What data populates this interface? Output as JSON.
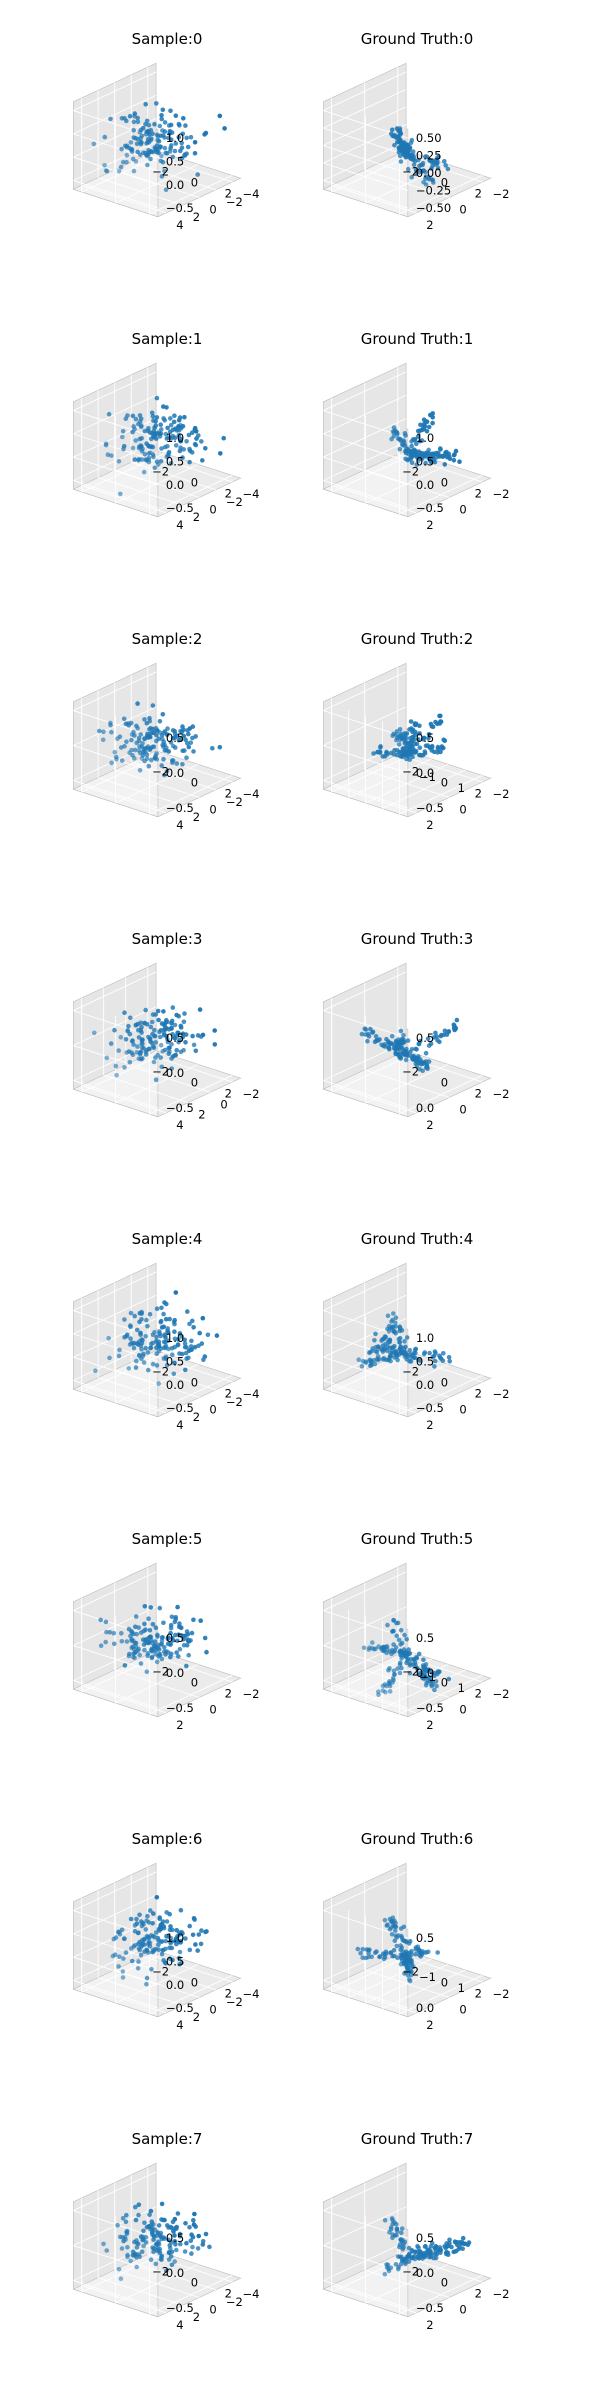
{
  "figure": {
    "layout": "8 rows x 2 columns grid of 3D scatter plots",
    "point_color": "#1f77b4",
    "pane_colors": {
      "back": "#f2f2f2",
      "side": "#e6e6e6",
      "floor": "#ebebeb",
      "edge": "#bcbcbc",
      "grid": "#ffffff"
    }
  },
  "chart_data": [
    {
      "type": "scatter",
      "title": "Sample:0",
      "xticks": [
        "−2",
        "0",
        "2"
      ],
      "yticks": [
        "4",
        "2",
        "0",
        "−2",
        "−4"
      ],
      "zticks": [
        "1.0",
        "0.5",
        "0.0",
        "−0.5"
      ],
      "xlim": [
        -3,
        3
      ],
      "ylim": [
        -5,
        5
      ],
      "zlim": [
        -1,
        1.2
      ],
      "points": {
        "distribution": "gaussian",
        "count": 150,
        "seed": 11,
        "spread": [
          0.7,
          0.9,
          0.55
        ]
      }
    },
    {
      "type": "scatter",
      "title": "Ground Truth:0",
      "xticks": [
        "−2",
        "0",
        "2"
      ],
      "yticks": [
        "2",
        "0",
        "−2"
      ],
      "zticks": [
        "0.50",
        "0.25",
        "0.00",
        "−0.25",
        "−0.50"
      ],
      "xlim": [
        -3,
        3
      ],
      "ylim": [
        -3,
        3
      ],
      "zlim": [
        -0.7,
        0.7
      ],
      "points": {
        "distribution": "branches",
        "count": 150,
        "seed": 12
      }
    },
    {
      "type": "scatter",
      "title": "Sample:1",
      "xticks": [
        "−2",
        "0",
        "2"
      ],
      "yticks": [
        "4",
        "2",
        "0",
        "−2",
        "−4"
      ],
      "zticks": [
        "1.0",
        "0.5",
        "0.0",
        "−0.5"
      ],
      "xlim": [
        -3,
        3
      ],
      "ylim": [
        -5,
        5
      ],
      "zlim": [
        -1,
        1.2
      ],
      "points": {
        "distribution": "gaussian",
        "count": 150,
        "seed": 21,
        "spread": [
          0.7,
          0.9,
          0.55
        ]
      }
    },
    {
      "type": "scatter",
      "title": "Ground Truth:1",
      "xticks": [
        "−2",
        "0",
        "2"
      ],
      "yticks": [
        "2",
        "0",
        "−2"
      ],
      "zticks": [
        "1.0",
        "0.5",
        "0.0",
        "−0.5"
      ],
      "xlim": [
        -3,
        3
      ],
      "ylim": [
        -3,
        3
      ],
      "zlim": [
        -1,
        1.2
      ],
      "points": {
        "distribution": "branches",
        "count": 150,
        "seed": 22
      }
    },
    {
      "type": "scatter",
      "title": "Sample:2",
      "xticks": [
        "−2",
        "0",
        "2"
      ],
      "yticks": [
        "4",
        "2",
        "0",
        "−2",
        "−4"
      ],
      "zticks": [
        "0.5",
        "0.0",
        "−0.5"
      ],
      "xlim": [
        -3,
        3
      ],
      "ylim": [
        -5,
        5
      ],
      "zlim": [
        -1,
        1
      ],
      "points": {
        "distribution": "gaussian",
        "count": 150,
        "seed": 31,
        "spread": [
          0.7,
          0.9,
          0.45
        ]
      }
    },
    {
      "type": "scatter",
      "title": "Ground Truth:2",
      "xticks": [
        "−2",
        "−1",
        "0",
        "1",
        "2"
      ],
      "yticks": [
        "2",
        "0",
        "−2"
      ],
      "zticks": [
        "0.5",
        "0.0",
        "−0.5"
      ],
      "xlim": [
        -2.5,
        2.5
      ],
      "ylim": [
        -3,
        3
      ],
      "zlim": [
        -1,
        1
      ],
      "points": {
        "distribution": "branches",
        "count": 150,
        "seed": 32
      }
    },
    {
      "type": "scatter",
      "title": "Sample:3",
      "xticks": [
        "−2",
        "0",
        "2"
      ],
      "yticks": [
        "4",
        "2",
        "0",
        "−2"
      ],
      "zticks": [
        "0.5",
        "0.0",
        "−0.5"
      ],
      "xlim": [
        -3,
        3
      ],
      "ylim": [
        -3,
        5
      ],
      "zlim": [
        -1,
        1
      ],
      "points": {
        "distribution": "gaussian",
        "count": 150,
        "seed": 41,
        "spread": [
          0.7,
          0.9,
          0.45
        ]
      }
    },
    {
      "type": "scatter",
      "title": "Ground Truth:3",
      "xticks": [
        "−2",
        "0",
        "2"
      ],
      "yticks": [
        "2",
        "0",
        "−2"
      ],
      "zticks": [
        "0.5",
        "0.0"
      ],
      "xlim": [
        -3,
        3
      ],
      "ylim": [
        -3,
        3
      ],
      "zlim": [
        -0.6,
        0.9
      ],
      "points": {
        "distribution": "branches",
        "count": 150,
        "seed": 42
      }
    },
    {
      "type": "scatter",
      "title": "Sample:4",
      "xticks": [
        "−2",
        "0",
        "2"
      ],
      "yticks": [
        "4",
        "2",
        "0",
        "−2",
        "−4"
      ],
      "zticks": [
        "1.0",
        "0.5",
        "0.0",
        "−0.5"
      ],
      "xlim": [
        -3,
        3
      ],
      "ylim": [
        -5,
        5
      ],
      "zlim": [
        -1,
        1.2
      ],
      "points": {
        "distribution": "gaussian",
        "count": 150,
        "seed": 51,
        "spread": [
          0.7,
          0.9,
          0.55
        ]
      }
    },
    {
      "type": "scatter",
      "title": "Ground Truth:4",
      "xticks": [
        "−2",
        "0",
        "2"
      ],
      "yticks": [
        "2",
        "0",
        "−2"
      ],
      "zticks": [
        "1.0",
        "0.5",
        "0.0",
        "−0.5"
      ],
      "xlim": [
        -3,
        3
      ],
      "ylim": [
        -3,
        3
      ],
      "zlim": [
        -1,
        1.2
      ],
      "points": {
        "distribution": "branches",
        "count": 150,
        "seed": 52
      }
    },
    {
      "type": "scatter",
      "title": "Sample:5",
      "xticks": [
        "−2",
        "0",
        "2"
      ],
      "yticks": [
        "2",
        "0",
        "−2"
      ],
      "zticks": [
        "0.5",
        "0.0",
        "−0.5"
      ],
      "xlim": [
        -3,
        3
      ],
      "ylim": [
        -3,
        3
      ],
      "zlim": [
        -1,
        1
      ],
      "points": {
        "distribution": "gaussian",
        "count": 150,
        "seed": 61,
        "spread": [
          0.7,
          0.7,
          0.45
        ]
      }
    },
    {
      "type": "scatter",
      "title": "Ground Truth:5",
      "xticks": [
        "−2",
        "−1",
        "0",
        "1",
        "2"
      ],
      "yticks": [
        "2",
        "0",
        "−2"
      ],
      "zticks": [
        "0.5",
        "0.0",
        "−0.5"
      ],
      "xlim": [
        -2.5,
        2.5
      ],
      "ylim": [
        -3,
        3
      ],
      "zlim": [
        -1,
        1
      ],
      "points": {
        "distribution": "branches",
        "count": 150,
        "seed": 62
      }
    },
    {
      "type": "scatter",
      "title": "Sample:6",
      "xticks": [
        "−2",
        "0",
        "2"
      ],
      "yticks": [
        "4",
        "2",
        "0",
        "−2",
        "−4"
      ],
      "zticks": [
        "1.0",
        "0.5",
        "0.0",
        "−0.5"
      ],
      "xlim": [
        -3,
        3
      ],
      "ylim": [
        -5,
        5
      ],
      "zlim": [
        -1,
        1.2
      ],
      "points": {
        "distribution": "gaussian",
        "count": 150,
        "seed": 71,
        "spread": [
          0.7,
          0.9,
          0.55
        ]
      }
    },
    {
      "type": "scatter",
      "title": "Ground Truth:6",
      "xticks": [
        "−2",
        "−1",
        "0",
        "1",
        "2"
      ],
      "yticks": [
        "2",
        "0",
        "−2"
      ],
      "zticks": [
        "0.5",
        "0.0"
      ],
      "xlim": [
        -2.5,
        2.5
      ],
      "ylim": [
        -3,
        3
      ],
      "zlim": [
        -0.6,
        0.9
      ],
      "points": {
        "distribution": "branches",
        "count": 150,
        "seed": 72
      }
    },
    {
      "type": "scatter",
      "title": "Sample:7",
      "xticks": [
        "−2",
        "0",
        "2"
      ],
      "yticks": [
        "4",
        "2",
        "0",
        "−2",
        "−4"
      ],
      "zticks": [
        "0.5",
        "0.0",
        "−0.5"
      ],
      "xlim": [
        -3,
        3
      ],
      "ylim": [
        -5,
        5
      ],
      "zlim": [
        -1,
        1
      ],
      "points": {
        "distribution": "gaussian",
        "count": 150,
        "seed": 81,
        "spread": [
          0.7,
          0.9,
          0.45
        ]
      }
    },
    {
      "type": "scatter",
      "title": "Ground Truth:7",
      "xticks": [
        "−2",
        "0",
        "2"
      ],
      "yticks": [
        "2",
        "0",
        "−2"
      ],
      "zticks": [
        "0.5",
        "0.0",
        "−0.5"
      ],
      "xlim": [
        -3,
        3
      ],
      "ylim": [
        -3,
        3
      ],
      "zlim": [
        -1,
        1
      ],
      "points": {
        "distribution": "branches",
        "count": 150,
        "seed": 82
      }
    }
  ]
}
